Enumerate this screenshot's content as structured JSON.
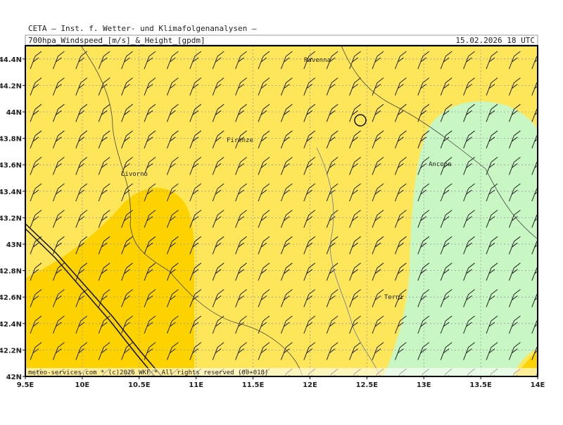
{
  "header": {
    "institute": "CETA – Inst. f. Wetter- und Klimafolgenanalysen –",
    "product": "700hpa_Windspeed_[m/s]_&_Height_[gpdm]",
    "valid_time": "15.02.2026 18 UTC"
  },
  "map": {
    "lat_labels": [
      "42N",
      "42.2N",
      "42.4N",
      "42.6N",
      "42.8N",
      "43N",
      "43.2N",
      "43.4N",
      "43.6N",
      "43.8N",
      "44N",
      "44.2N",
      "44.4N"
    ],
    "lon_labels": [
      "9.5E",
      "10E",
      "10.5E",
      "11E",
      "11.5E",
      "12E",
      "12.5E",
      "13E",
      "13.5E",
      "14E"
    ],
    "cities": [
      "Ravenna",
      "Firenze",
      "Livorno",
      "Ancona",
      "Terni"
    ],
    "footer": "meteo-services.com * (c)2026 WKF * All rights reserved (00+018)"
  }
}
